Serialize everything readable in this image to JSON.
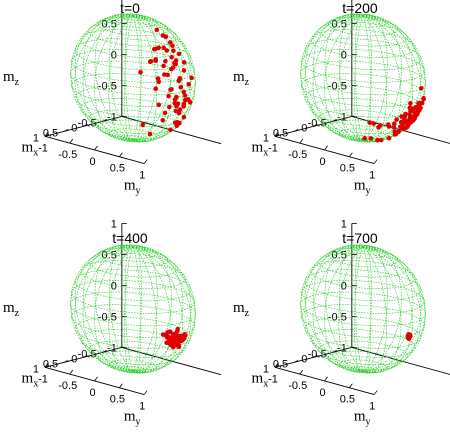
{
  "chart_data": [
    {
      "type": "scatter",
      "title": "t=0",
      "zlabel": "m_z",
      "xlabel": "m_x",
      "ylabel": "m_y",
      "zlim": [
        -1,
        1
      ],
      "xlim": [
        -1,
        1
      ],
      "ylim": [
        -1,
        1
      ],
      "z_ticks": [
        "1",
        "0.5",
        "0",
        "-0.5",
        "-1"
      ],
      "x_ticks": [
        "-0.5",
        "0",
        "0.5",
        "1"
      ],
      "y_ticks": [
        "-1",
        "-0.5",
        "0",
        "0.5",
        "1"
      ],
      "series": [
        {
          "color": "#e00000",
          "cluster": {
            "center": [
              0.15,
              0.85,
              0.25
            ],
            "spread": [
              0.25,
              0.12,
              0.55
            ],
            "count": 70,
            "seed": 11
          }
        }
      ]
    },
    {
      "type": "scatter",
      "title": "t=200",
      "zlabel": "m_z",
      "xlabel": "m_x",
      "ylabel": "m_y",
      "zlim": [
        -1,
        1
      ],
      "xlim": [
        -1,
        1
      ],
      "ylim": [
        -1,
        1
      ],
      "z_ticks": [
        "1",
        "0.5",
        "0",
        "-0.5",
        "-1"
      ],
      "x_ticks": [
        "-0.5",
        "0",
        "0.5",
        "1"
      ],
      "y_ticks": [
        "-1",
        "-0.5",
        "0",
        "0.5",
        "1"
      ],
      "series": [
        {
          "color": "#e00000",
          "cluster": {
            "center": [
              -0.35,
              0.65,
              -0.55
            ],
            "spread": [
              0.35,
              0.3,
              0.15
            ],
            "count": 80,
            "seed": 23
          }
        }
      ]
    },
    {
      "type": "scatter",
      "title": "t=400",
      "zlabel": "m_z",
      "xlabel": "m_x",
      "ylabel": "m_y",
      "zlim": [
        -1,
        1
      ],
      "xlim": [
        -1,
        1
      ],
      "ylim": [
        -1,
        1
      ],
      "z_ticks": [
        "1",
        "0.5",
        "0",
        "-0.5",
        "-1"
      ],
      "x_ticks": [
        "-0.5",
        "0",
        "0.5",
        "1"
      ],
      "y_ticks": [
        "-1",
        "-0.5",
        "0",
        "0.5",
        "1"
      ],
      "series": [
        {
          "color": "#e00000",
          "cluster": {
            "center": [
              -0.75,
              0.25,
              -0.55
            ],
            "spread": [
              0.08,
              0.12,
              0.05
            ],
            "count": 60,
            "seed": 37
          }
        }
      ]
    },
    {
      "type": "scatter",
      "title": "t=700",
      "zlabel": "m_z",
      "xlabel": "m_x",
      "ylabel": "m_y",
      "zlim": [
        -1,
        1
      ],
      "xlim": [
        -1,
        1
      ],
      "ylim": [
        -1,
        1
      ],
      "z_ticks": [
        "1",
        "0.5",
        "0",
        "-0.5",
        "-1"
      ],
      "x_ticks": [
        "-0.5",
        "0",
        "0.5",
        "1"
      ],
      "y_ticks": [
        "-1",
        "-0.5",
        "0",
        "0.5",
        "1"
      ],
      "series": [
        {
          "color": "#e00000",
          "cluster": {
            "center": [
              -0.8,
              0.3,
              -0.5
            ],
            "spread": [
              0.02,
              0.02,
              0.015
            ],
            "count": 25,
            "seed": 51
          }
        }
      ]
    }
  ],
  "style": {
    "sphere_color": "#22cc22",
    "axis_color": "#000000",
    "background": "#ffffff"
  }
}
